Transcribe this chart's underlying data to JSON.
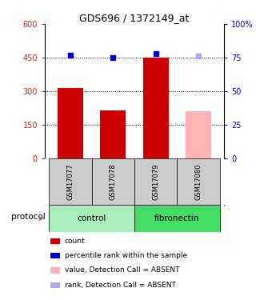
{
  "title": "GDS696 / 1372149_at",
  "samples": [
    "GSM17077",
    "GSM17078",
    "GSM17079",
    "GSM17080"
  ],
  "bar_values": [
    315,
    215,
    450,
    210
  ],
  "bar_colors": [
    "#cc0000",
    "#cc0000",
    "#cc0000",
    "#ffb3b3"
  ],
  "dot_values": [
    77,
    75,
    78,
    76
  ],
  "dot_colors": [
    "#0000cc",
    "#0000cc",
    "#0000cc",
    "#aaaaee"
  ],
  "groups": [
    {
      "label": "control",
      "span": [
        0,
        2
      ],
      "color": "#aaeebb"
    },
    {
      "label": "fibronectin",
      "span": [
        2,
        4
      ],
      "color": "#44dd66"
    }
  ],
  "ylim_left": [
    0,
    600
  ],
  "ylim_right": [
    0,
    100
  ],
  "yticks_left": [
    0,
    150,
    300,
    450,
    600
  ],
  "ytick_labels_left": [
    "0",
    "150",
    "300",
    "450",
    "600"
  ],
  "yticks_right": [
    0,
    25,
    50,
    75,
    100
  ],
  "ytick_labels_right": [
    "0",
    "25",
    "50",
    "75",
    "100%"
  ],
  "hlines": [
    150,
    300,
    450
  ],
  "left_axis_color": "#cc2200",
  "right_axis_color": "#0000cc",
  "bg_color": "#ffffff",
  "protocol_label": "protocol",
  "legend_items": [
    {
      "color": "#cc0000",
      "label": "count"
    },
    {
      "color": "#0000cc",
      "label": "percentile rank within the sample"
    },
    {
      "color": "#ffb3b3",
      "label": "value, Detection Call = ABSENT"
    },
    {
      "color": "#aaaaee",
      "label": "rank, Detection Call = ABSENT"
    }
  ]
}
